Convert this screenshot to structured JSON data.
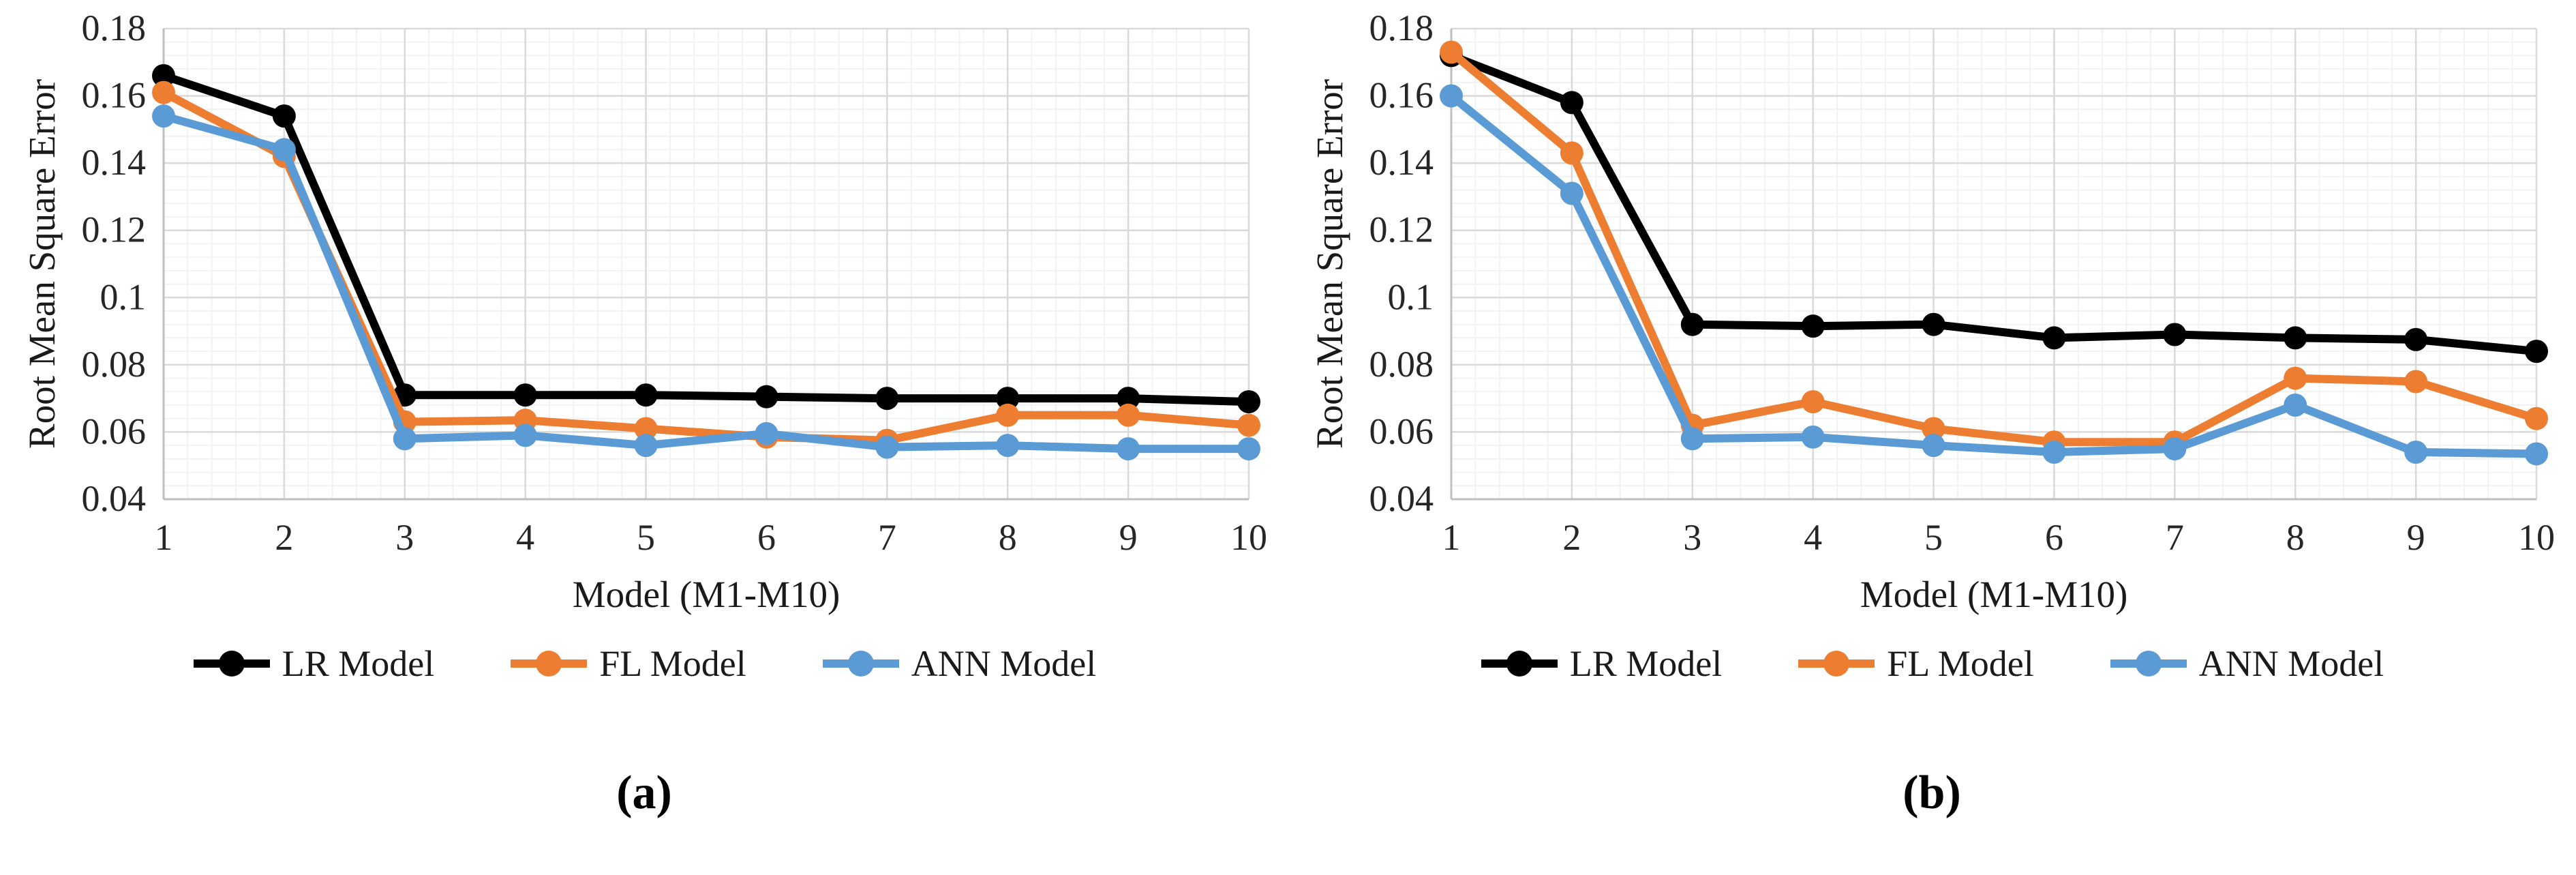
{
  "colors": {
    "lr": "#000000",
    "fl": "#ED7D31",
    "ann": "#5B9BD5",
    "grid_major": "#D9D9D9",
    "grid_minor": "#F2F2F2",
    "axis_line": "#BFBFBF",
    "tick_text": "#262626",
    "axis_title_text": "#1a1a1a"
  },
  "chart_data": [
    {
      "type": "line",
      "panel": "a",
      "caption": "(a)",
      "xlabel": "Model (M1-M10)",
      "ylabel": "Root Mean Square Error",
      "x": [
        1,
        2,
        3,
        4,
        5,
        6,
        7,
        8,
        9,
        10
      ],
      "xtick_labels": [
        "1",
        "2",
        "3",
        "4",
        "5",
        "6",
        "7",
        "8",
        "9",
        "10"
      ],
      "ylim": [
        0.04,
        0.18
      ],
      "ytick_step": 0.02,
      "y_minor_unit": 0.004,
      "x_minor_divisions": 5,
      "ytick_labels": [
        "0.04",
        "0.06",
        "0.08",
        "0.1",
        "0.12",
        "0.14",
        "0.16",
        "0.18"
      ],
      "grid": "major+minor",
      "legend_position": "bottom",
      "series": [
        {
          "name": "LR Model",
          "color_key": "lr",
          "values": [
            0.166,
            0.154,
            0.071,
            0.071,
            0.071,
            0.0705,
            0.07,
            0.07,
            0.07,
            0.069
          ]
        },
        {
          "name": "FL Model",
          "color_key": "fl",
          "values": [
            0.161,
            0.142,
            0.063,
            0.0635,
            0.061,
            0.0585,
            0.0575,
            0.065,
            0.065,
            0.062
          ]
        },
        {
          "name": "ANN Model",
          "color_key": "ann",
          "values": [
            0.154,
            0.144,
            0.058,
            0.059,
            0.056,
            0.0595,
            0.0555,
            0.056,
            0.055,
            0.055
          ]
        }
      ]
    },
    {
      "type": "line",
      "panel": "b",
      "caption": "(b)",
      "xlabel": "Model (M1-M10)",
      "ylabel": "Root Mean Square Error",
      "x": [
        1,
        2,
        3,
        4,
        5,
        6,
        7,
        8,
        9,
        10
      ],
      "xtick_labels": [
        "1",
        "2",
        "3",
        "4",
        "5",
        "6",
        "7",
        "8",
        "9",
        "10"
      ],
      "ylim": [
        0.04,
        0.18
      ],
      "ytick_step": 0.02,
      "y_minor_unit": 0.004,
      "x_minor_divisions": 5,
      "ytick_labels": [
        "0.04",
        "0.06",
        "0.08",
        "0.1",
        "0.12",
        "0.14",
        "0.16",
        "0.18"
      ],
      "grid": "major+minor",
      "legend_position": "bottom",
      "series": [
        {
          "name": "LR Model",
          "color_key": "lr",
          "values": [
            0.172,
            0.158,
            0.092,
            0.0915,
            0.092,
            0.088,
            0.089,
            0.088,
            0.0875,
            0.084
          ]
        },
        {
          "name": "FL Model",
          "color_key": "fl",
          "values": [
            0.173,
            0.143,
            0.062,
            0.069,
            0.061,
            0.057,
            0.057,
            0.076,
            0.075,
            0.064
          ]
        },
        {
          "name": "ANN Model",
          "color_key": "ann",
          "values": [
            0.16,
            0.131,
            0.058,
            0.0585,
            0.056,
            0.054,
            0.055,
            0.068,
            0.054,
            0.0535
          ]
        }
      ]
    }
  ]
}
